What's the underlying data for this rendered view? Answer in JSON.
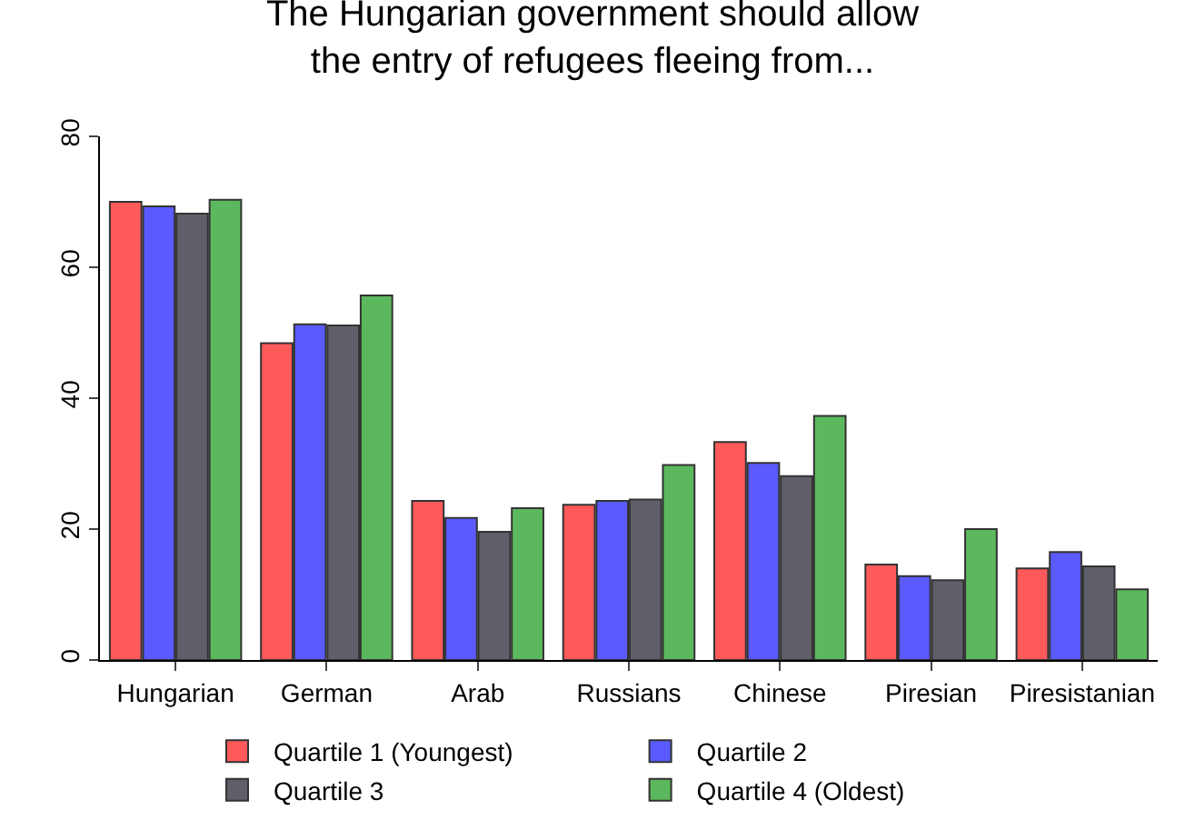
{
  "chart_data": {
    "type": "bar",
    "title": "The Hungarian government should allow\nthe entry of refugees fleeing from...",
    "categories": [
      "Hungarian",
      "German",
      "Arab",
      "Russians",
      "Chinese",
      "Piresian",
      "Piresistanian"
    ],
    "series": [
      {
        "name": "Quartile 1 (Youngest)",
        "color": "#ff5a5a",
        "values": [
          70.0,
          48.4,
          24.3,
          23.7,
          33.3,
          14.6,
          14.0
        ]
      },
      {
        "name": "Quartile 2",
        "color": "#5a5aff",
        "values": [
          69.3,
          51.3,
          21.7,
          24.3,
          30.1,
          12.8,
          16.5
        ]
      },
      {
        "name": "Quartile 3",
        "color": "#5f5f6a",
        "values": [
          68.2,
          51.1,
          19.6,
          24.5,
          28.1,
          12.2,
          14.3
        ]
      },
      {
        "name": "Quartile 4 (Oldest)",
        "color": "#5cb85c",
        "values": [
          70.3,
          55.7,
          23.2,
          29.8,
          37.3,
          20.0,
          10.8
        ]
      }
    ],
    "ylim": [
      0,
      80
    ],
    "yticks": [
      0,
      20,
      40,
      60,
      80
    ],
    "grid": false,
    "legend": "bottom"
  }
}
